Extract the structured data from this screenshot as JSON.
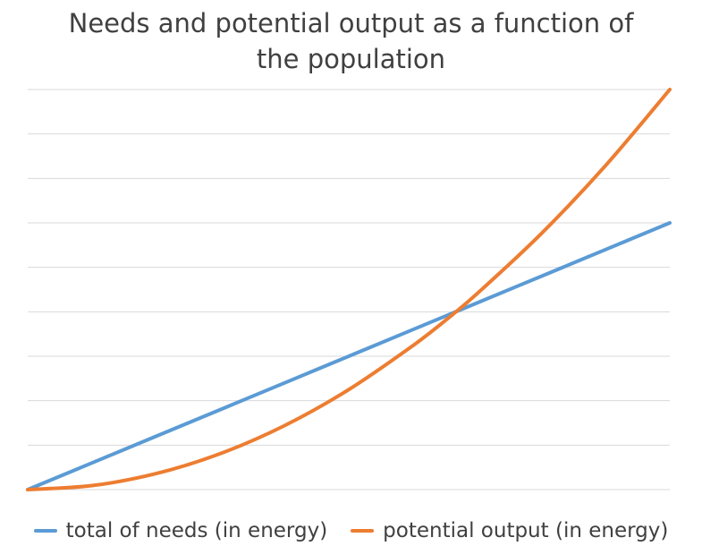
{
  "chart_data": {
    "type": "line",
    "title_lines": [
      "Needs and potential output as a function of",
      "the population"
    ],
    "xlabel": "",
    "ylabel": "",
    "x": [
      0,
      0.1,
      0.2,
      0.3,
      0.4,
      0.5,
      0.6,
      0.65,
      0.7,
      0.8,
      0.9,
      1.0
    ],
    "ylim": [
      0,
      9
    ],
    "grid": true,
    "legend_position": "bottom",
    "series": [
      {
        "name": "total of needs (in energy)",
        "color": "#5b9bd5",
        "values": [
          0,
          0.6,
          1.2,
          1.8,
          2.4,
          3.0,
          3.6,
          3.9,
          4.2,
          4.8,
          5.4,
          6.0
        ]
      },
      {
        "name": "potential output (in energy)",
        "color": "#ed7d31",
        "values": [
          0,
          0.09,
          0.36,
          0.81,
          1.44,
          2.25,
          3.24,
          3.8,
          4.41,
          5.76,
          7.29,
          9.0
        ]
      }
    ]
  }
}
